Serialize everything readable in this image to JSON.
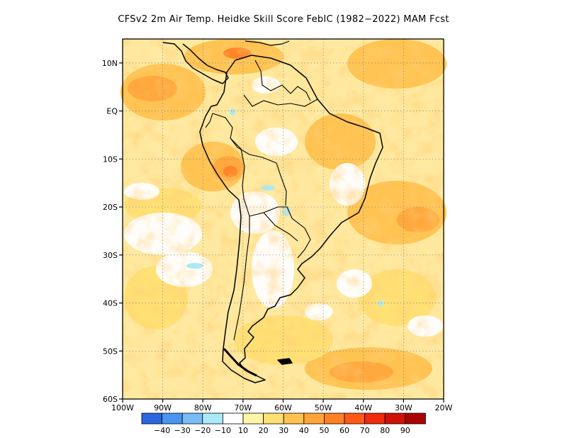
{
  "title": "CFSv2  2m Air Temp. Heidke Skill Score FebIC (1982−2022) MAM Fcst",
  "map": {
    "projection": "lat-lon",
    "lon_range": [
      -100,
      -20
    ],
    "lat_range": [
      -60,
      15
    ],
    "y_ticks": [
      "10N",
      "EQ",
      "10S",
      "20S",
      "30S",
      "40S",
      "50S",
      "60S"
    ],
    "x_ticks": [
      "100W",
      "90W",
      "80W",
      "70W",
      "60W",
      "50W",
      "40W",
      "30W",
      "20W"
    ],
    "gridlines": "dotted"
  },
  "colorbar": {
    "colors": [
      "#2a66e0",
      "#4896f0",
      "#78bcf6",
      "#aaeaf8",
      "#ffffff",
      "#fff5a8",
      "#ffe073",
      "#ffc24e",
      "#ffa538",
      "#ff8020",
      "#ff5a14",
      "#f02a0c",
      "#cf1108",
      "#a80500"
    ],
    "labels": [
      "−40",
      "−30",
      "−20",
      "−10",
      "10",
      "20",
      "30",
      "40",
      "50",
      "60",
      "70",
      "80",
      "90"
    ]
  }
}
